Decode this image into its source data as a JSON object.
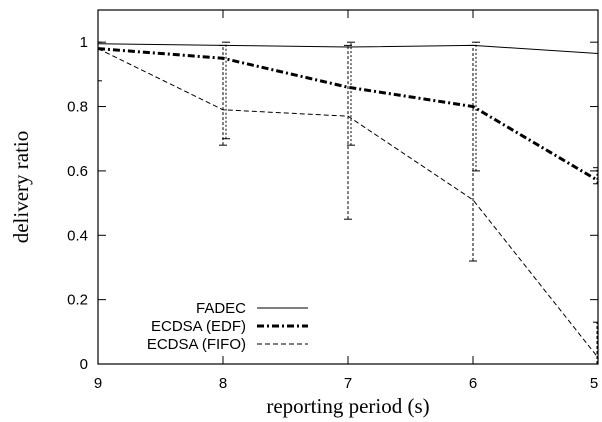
{
  "chart_data": {
    "type": "line",
    "title": "",
    "xlabel": "reporting period (s)",
    "ylabel": "delivery ratio",
    "x": [
      9,
      8,
      7,
      6,
      5
    ],
    "xlim": [
      9,
      5
    ],
    "ylim": [
      0,
      1.1
    ],
    "x_ticks": [
      "9",
      "8",
      "7",
      "6",
      "5"
    ],
    "y_ticks": [
      "0",
      "0.2",
      "0.4",
      "0.6",
      "0.8",
      "1"
    ],
    "y_tick_values": [
      0,
      0.2,
      0.4,
      0.6,
      0.8,
      1.0
    ],
    "grid": false,
    "legend_position": "bottom-left",
    "series": [
      {
        "name": "FADEC",
        "style": "solid",
        "values": [
          0.995,
          0.99,
          0.985,
          0.99,
          0.965
        ],
        "error_low": [
          null,
          null,
          null,
          null,
          null
        ],
        "error_high": [
          null,
          null,
          null,
          null,
          null
        ]
      },
      {
        "name": "ECDSA (EDF)",
        "style": "dash-dot-bold",
        "values": [
          0.98,
          0.95,
          0.86,
          0.8,
          0.57
        ],
        "error_low": [
          null,
          0.7,
          0.68,
          0.6,
          0.56
        ],
        "error_high": [
          null,
          1.0,
          1.0,
          1.0,
          0.61
        ]
      },
      {
        "name": "ECDSA (FIFO)",
        "style": "dashed",
        "values": [
          0.98,
          0.79,
          0.77,
          0.51,
          0.02
        ],
        "error_low": [
          0.88,
          0.68,
          0.45,
          0.32,
          0.0
        ],
        "error_high": [
          1.0,
          0.99,
          0.99,
          0.99,
          0.13
        ]
      }
    ]
  }
}
